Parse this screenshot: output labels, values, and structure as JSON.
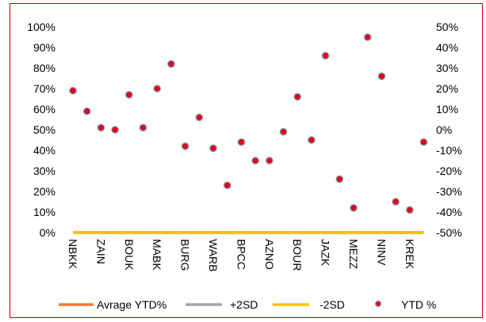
{
  "chart_data": {
    "type": "scatter",
    "categories": [
      "NBKK",
      "ZAIN",
      "BOUK",
      "MABK",
      "BURG",
      "WARB",
      "BPCC",
      "AZNO",
      "BOUR",
      "JAZK",
      "MEZZ",
      "NINV",
      "KREK"
    ],
    "labeled_categories_note": "",
    "left_axis": {
      "ticks": [
        "100%",
        "90%",
        "80%",
        "70%",
        "60%",
        "50%",
        "40%",
        "30%",
        "20%",
        "10%",
        "0%"
      ],
      "ylim": [
        0,
        1
      ]
    },
    "right_axis": {
      "ticks": [
        "50%",
        "40%",
        "30%",
        "20%",
        "10%",
        "0%",
        "-10%",
        "-20%",
        "-30%",
        "-40%",
        "-50%"
      ],
      "ylim": [
        -0.5,
        0.5
      ]
    },
    "series": [
      {
        "name": "Avrage YTD%",
        "color": "#ED7D31",
        "axis": "left",
        "values": [
          0,
          0,
          0,
          0,
          0,
          0,
          0,
          0,
          0,
          0,
          0,
          0,
          0,
          0,
          0,
          0,
          0,
          0,
          0,
          0,
          0,
          0,
          0,
          0,
          0,
          0
        ]
      },
      {
        "name": "+2SD",
        "color": "#A5A5A5",
        "axis": "left",
        "values": [
          0,
          0,
          0,
          0,
          0,
          0,
          0,
          0,
          0,
          0,
          0,
          0,
          0,
          0,
          0,
          0,
          0,
          0,
          0,
          0,
          0,
          0,
          0,
          0,
          0,
          0
        ]
      },
      {
        "name": "-2SD",
        "color": "#FFC000",
        "axis": "left",
        "values": [
          0,
          0,
          0,
          0,
          0,
          0,
          0,
          0,
          0,
          0,
          0,
          0,
          0,
          0,
          0,
          0,
          0,
          0,
          0,
          0,
          0,
          0,
          0,
          0,
          0,
          0
        ]
      },
      {
        "name": "YTD %",
        "color": "#E30613",
        "axis": "right",
        "values": [
          0.19,
          0.09,
          0.01,
          0.0,
          0.17,
          0.01,
          0.2,
          0.32,
          -0.08,
          0.06,
          -0.09,
          -0.27,
          -0.06,
          -0.15,
          -0.15,
          -0.01,
          0.16,
          -0.05,
          0.36,
          -0.24,
          -0.38,
          0.45,
          0.26,
          -0.35,
          -0.39,
          -0.06
        ]
      }
    ],
    "legend": {
      "position": "bottom",
      "entries": [
        "Avrage YTD%",
        "+2SD",
        "-2SD",
        "YTD %"
      ]
    },
    "grid": false
  },
  "colors": {
    "frame": "#C00000",
    "marker_fill": "#E30613",
    "marker_edge": "#7F9FC4",
    "line": "#FFC000"
  }
}
